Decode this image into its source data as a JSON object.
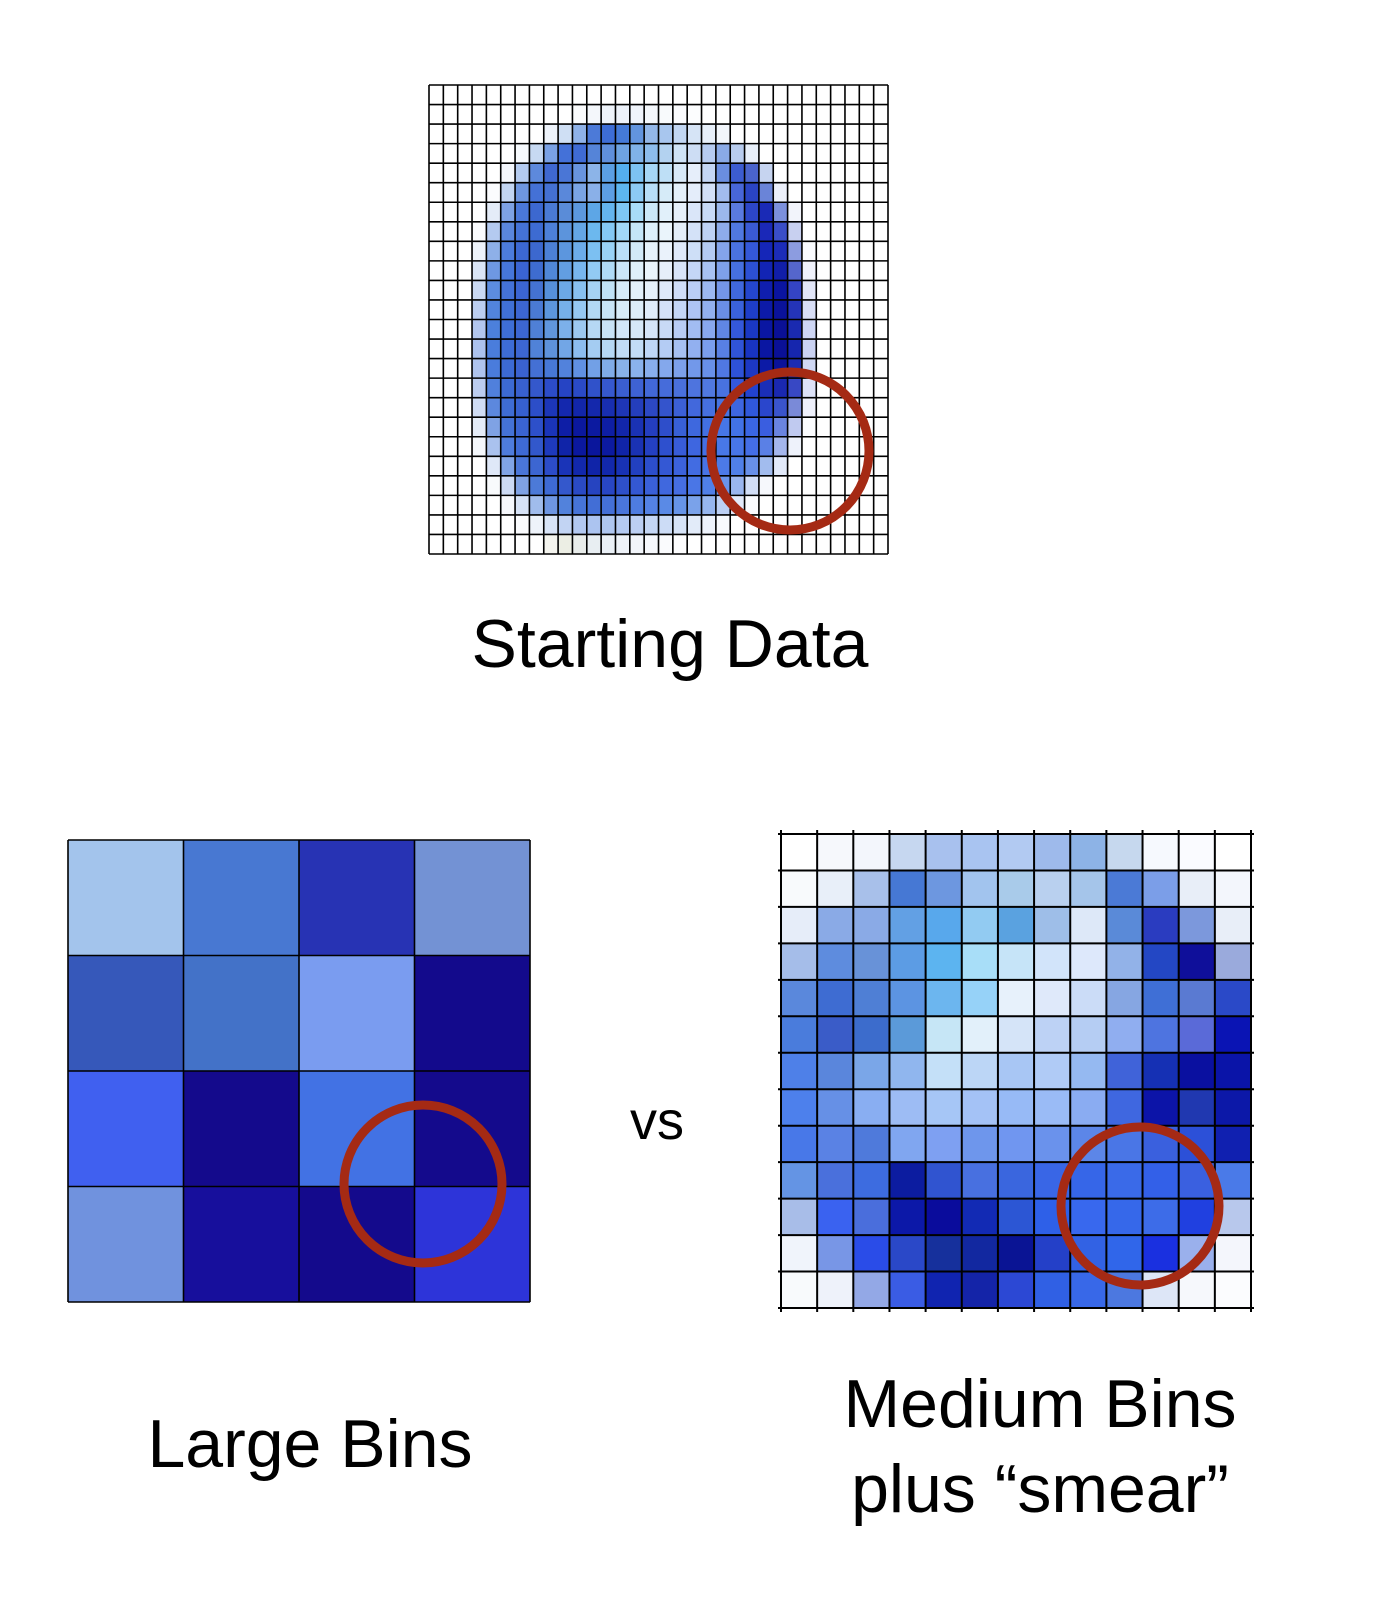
{
  "captions": {
    "starting": "Starting Data",
    "large": "Large Bins",
    "medium_line1": "Medium Bins",
    "medium_line2": "plus “smear”",
    "vs": "vs"
  },
  "colors": {
    "grid_line": "#000000",
    "highlight_circle": "#a52a14",
    "background": "#ffffff"
  },
  "large_bins": [
    [
      "#a3c4ec",
      "#4878d2",
      "#2733b4",
      "#7392d4"
    ],
    [
      "#3658ba",
      "#4372c8",
      "#7a9cf0",
      "#130a8c"
    ],
    [
      "#4060f0",
      "#140a8c",
      "#4272e4",
      "#140a8c"
    ],
    [
      "#7092de",
      "#170f9c",
      "#140a8c",
      "#2d34d9"
    ]
  ],
  "medium_bins": [
    [
      "#ffffff",
      "#f6f8fc",
      "#f3f6fc",
      "#c6d7f0",
      "#a8c1ee",
      "#a9c4f1",
      "#b2caf2",
      "#9ebaeb",
      "#8db3e6",
      "#c6d8ee",
      "#f6f9fe",
      "#fafbff",
      "#ffffff"
    ],
    [
      "#f8fafc",
      "#e8eff9",
      "#a8c0ea",
      "#4678d4",
      "#6d97e0",
      "#a2c4ee",
      "#a9cbea",
      "#b9d0ef",
      "#a5c5ea",
      "#4b7ad6",
      "#7b9ee8",
      "#e8eef8",
      "#f3f6fc"
    ],
    [
      "#e6edf9",
      "#8aaae6",
      "#8aaae6",
      "#62a0e4",
      "#58a8ec",
      "#92cbf2",
      "#5aa2e0",
      "#9ebee8",
      "#dde8f8",
      "#5a8ad8",
      "#2a3cc0",
      "#7c98dc",
      "#e8eef8"
    ],
    [
      "#a5bde9",
      "#5e8cde",
      "#6892d8",
      "#5c9ce4",
      "#5cb4f0",
      "#a8def8",
      "#c6e4f8",
      "#d2e4fa",
      "#dde8fb",
      "#92b2e8",
      "#2347c4",
      "#0f0f9a",
      "#9aaadc"
    ],
    [
      "#5a88dc",
      "#3e6cd2",
      "#4f7fd5",
      "#5c94e2",
      "#6cb6ef",
      "#96d2f8",
      "#e7f1fb",
      "#dfe9fa",
      "#cbdcf7",
      "#86a6e2",
      "#3f6fd6",
      "#5a7ad2",
      "#2a49c8"
    ],
    [
      "#4a7cdc",
      "#3a5cc8",
      "#3c6ccc",
      "#5b9ad9",
      "#c6e6f6",
      "#e2f0fa",
      "#d5e4f8",
      "#bdd2f5",
      "#b5cdf3",
      "#90aef0",
      "#4e74e0",
      "#5a6ad8",
      "#0a14b4"
    ],
    [
      "#4e80e8",
      "#5a86dc",
      "#7aa6e8",
      "#90b6ee",
      "#c4e0f8",
      "#bcd6f6",
      "#a8c6f4",
      "#b0cbf6",
      "#95b9f1",
      "#4063d9",
      "#1530b4",
      "#0a10a0",
      "#0a14a8"
    ],
    [
      "#4d80ec",
      "#6690e6",
      "#89aef2",
      "#9dbcf4",
      "#a6c6f6",
      "#a4c2f6",
      "#97baf6",
      "#9abbf6",
      "#8aacf2",
      "#3f67e0",
      "#0c14a8",
      "#2038b0",
      "#0c18a8"
    ],
    [
      "#4878e8",
      "#5a82e4",
      "#4f7adb",
      "#80a6f0",
      "#7ea0f2",
      "#6e96ec",
      "#7096f0",
      "#6a92ec",
      "#5c86e8",
      "#4a76e6",
      "#3a60de",
      "#2c50d8",
      "#1020b0"
    ],
    [
      "#6494e4",
      "#4a70dc",
      "#3d6ce0",
      "#0c1ca0",
      "#3054d0",
      "#4870e0",
      "#3a66de",
      "#3966e6",
      "#3666e8",
      "#3a6ae8",
      "#3360e8",
      "#3a60e0",
      "#4a7ae8"
    ],
    [
      "#a8bde8",
      "#3a62f0",
      "#4a6edc",
      "#0c18a8",
      "#0a0c9c",
      "#122ab4",
      "#2c56d4",
      "#2e60e8",
      "#3868ee",
      "#3668ea",
      "#3d6ce8",
      "#2040e0",
      "#b8c8ec"
    ],
    [
      "#f0f4fb",
      "#7896e6",
      "#2a4ce8",
      "#2a48c8",
      "#16309c",
      "#1228a0",
      "#0a1494",
      "#2440c8",
      "#3262e4",
      "#3066ea",
      "#1a30e0",
      "#9ab0ec",
      "#f4f6fc"
    ],
    [
      "#f8fafc",
      "#eef2fa",
      "#93a8e6",
      "#3a5ce4",
      "#1024b0",
      "#1424a8",
      "#2c48d4",
      "#3060e4",
      "#3868e8",
      "#4c78e0",
      "#dde6f7",
      "#f6f8fc",
      "#fbfcfe"
    ]
  ],
  "starting_grid": [
    [
      "#ffffff",
      "#ffffff",
      "#ffffff",
      "#ffffff",
      "#ffffff",
      "#ffffff",
      "#ffffff",
      "#ffffff",
      "#ffffff",
      "#ffffff",
      "#ffffff",
      "#ffffff",
      "#ffffff",
      "#ffffff",
      "#ffffff",
      "#ffffff",
      "#ffffff",
      "#ffffff",
      "#ffffff",
      "#ffffff",
      "#ffffff",
      "#ffffff",
      "#ffffff",
      "#ffffff",
      "#ffffff",
      "#ffffff",
      "#ffffff",
      "#ffffff",
      "#ffffff",
      "#ffffff",
      "#ffffff",
      "#ffffff"
    ],
    [
      "#ffffff",
      "#ffffff",
      "#ffffff",
      "#ffffff",
      "#ffffff",
      "#ffffff",
      "#ffffff",
      "#ffffff",
      "#ffffff",
      "#ffffff",
      "#fafbfc",
      "#f4f7fb",
      "#eef3fa",
      "#edf2fa",
      "#f0f4fb",
      "#f4f7fb",
      "#f8fafc",
      "#fafbfd",
      "#fcfdfe",
      "#ffffff",
      "#ffffff",
      "#ffffff",
      "#ffffff",
      "#ffffff",
      "#ffffff",
      "#ffffff",
      "#ffffff",
      "#ffffff",
      "#ffffff",
      "#ffffff",
      "#ffffff",
      "#ffffff"
    ],
    [
      "#ffffff",
      "#ffffff",
      "#ffffff",
      "#ffffff",
      "#ffffff",
      "#ffffff",
      "#ffffff",
      "#ffffff",
      "#eef3fa",
      "#cfdff4",
      "#8fb2e8",
      "#4c7ad8",
      "#3d6dd6",
      "#447ad8",
      "#6294de",
      "#93b7e8",
      "#a8c6ee",
      "#c1d6f2",
      "#d6e4f6",
      "#e7eff9",
      "#f2f6fb",
      "#ffffff",
      "#ffffff",
      "#ffffff",
      "#ffffff",
      "#ffffff",
      "#ffffff",
      "#ffffff",
      "#ffffff",
      "#ffffff",
      "#ffffff",
      "#ffffff"
    ],
    [
      "#ffffff",
      "#ffffff",
      "#ffffff",
      "#ffffff",
      "#ffffff",
      "#ffffff",
      "#f6f9fc",
      "#c7d9f2",
      "#7aa1e4",
      "#4471d8",
      "#3f6bd4",
      "#5584d8",
      "#5f8fdc",
      "#6ea3e2",
      "#80b2e8",
      "#8dbcec",
      "#b3d2f0",
      "#cfe3f6",
      "#cdddf4",
      "#b6cbf0",
      "#8aaae6",
      "#b8ccee",
      "#e8eff9",
      "#ffffff",
      "#ffffff",
      "#ffffff",
      "#ffffff",
      "#ffffff",
      "#ffffff",
      "#ffffff",
      "#ffffff",
      "#ffffff"
    ],
    [
      "#ffffff",
      "#ffffff",
      "#ffffff",
      "#ffffff",
      "#ffffff",
      "#f4f7fc",
      "#b4cbf0",
      "#5d89dc",
      "#3f68d0",
      "#4a76d6",
      "#6894de",
      "#8cb4e8",
      "#5b9fe4",
      "#54aeee",
      "#7dc2f2",
      "#a6d6f6",
      "#bedff6",
      "#d8e9f8",
      "#e6eefa",
      "#c4d6f4",
      "#6a8ee0",
      "#3c5cd0",
      "#4a64cc",
      "#c6d4f0",
      "#ffffff",
      "#ffffff",
      "#ffffff",
      "#ffffff",
      "#ffffff",
      "#ffffff",
      "#ffffff",
      "#ffffff"
    ],
    [
      "#ffffff",
      "#ffffff",
      "#ffffff",
      "#ffffff",
      "#fbfcfe",
      "#c2d5f2",
      "#6e96e0",
      "#4471d6",
      "#4470d2",
      "#5a88da",
      "#7aa4e4",
      "#8ab0e8",
      "#5c9ee4",
      "#5db6f0",
      "#8ccaf4",
      "#b7def8",
      "#d6ebf8",
      "#e4f0fa",
      "#e4edfa",
      "#d3e0f7",
      "#a2bcee",
      "#4866d8",
      "#2a44c4",
      "#6a84d8",
      "#ecf0fa",
      "#ffffff",
      "#ffffff",
      "#ffffff",
      "#ffffff",
      "#ffffff",
      "#ffffff",
      "#ffffff"
    ],
    [
      "#ffffff",
      "#ffffff",
      "#ffffff",
      "#ffffff",
      "#e4ecf8",
      "#7ea2e4",
      "#4a78da",
      "#3c68d0",
      "#4a7ad4",
      "#5a8cd8",
      "#5c98de",
      "#5da6e6",
      "#64b4ee",
      "#7ec6f4",
      "#a8dcf8",
      "#cbe8f8",
      "#e1f0fa",
      "#e6f0fa",
      "#dae6f9",
      "#c8daf6",
      "#9cb8ec",
      "#5a7ae0",
      "#2c46c8",
      "#1a2ab6",
      "#7c90dc",
      "#f2f4fb",
      "#ffffff",
      "#ffffff",
      "#ffffff",
      "#ffffff",
      "#ffffff",
      "#ffffff"
    ],
    [
      "#ffffff",
      "#ffffff",
      "#ffffff",
      "#fafbfd",
      "#b4caf0",
      "#5a86dc",
      "#4472d6",
      "#3d6bd2",
      "#4d80d8",
      "#5c94dc",
      "#64a6e4",
      "#6cb8ee",
      "#84c8f4",
      "#a2d8f8",
      "#c4e6f8",
      "#ddf0fa",
      "#eaf4fb",
      "#e4eef9",
      "#d4e2f8",
      "#bed2f4",
      "#8eacea",
      "#5078e0",
      "#3a5ad4",
      "#1a28b8",
      "#3a4ec8",
      "#c8d0f0",
      "#ffffff",
      "#ffffff",
      "#ffffff",
      "#ffffff",
      "#ffffff",
      "#ffffff"
    ],
    [
      "#ffffff",
      "#ffffff",
      "#ffffff",
      "#eef3fa",
      "#8eb0e8",
      "#4c7cdc",
      "#3c68d2",
      "#3c68cf",
      "#4c80d6",
      "#5c96de",
      "#6cacea",
      "#7cc0f2",
      "#9ad2f6",
      "#badff8",
      "#d2eaf8",
      "#e6f2fa",
      "#eaf2fb",
      "#dfe9f9",
      "#cedff7",
      "#b4cbf3",
      "#84a4ea",
      "#4a72e0",
      "#3458d8",
      "#1526b8",
      "#1c2cb8",
      "#8c9ce0",
      "#fafbfe",
      "#ffffff",
      "#ffffff",
      "#ffffff",
      "#ffffff",
      "#ffffff"
    ],
    [
      "#ffffff",
      "#ffffff",
      "#ffffff",
      "#dae5f6",
      "#6e98e2",
      "#4676da",
      "#3a64d2",
      "#3e6cd0",
      "#5088d8",
      "#629ee2",
      "#78b6ee",
      "#92caf4",
      "#b0daf6",
      "#cbe6f8",
      "#dff0fa",
      "#eaf4fb",
      "#e6effa",
      "#d8e4f8",
      "#c4d6f6",
      "#a8c2f2",
      "#7ea0ea",
      "#4670e0",
      "#2c50d4",
      "#1224b4",
      "#111ea8",
      "#5566cc",
      "#f0f2fb",
      "#ffffff",
      "#ffffff",
      "#ffffff",
      "#ffffff",
      "#ffffff"
    ],
    [
      "#ffffff",
      "#ffffff",
      "#ffffff",
      "#cad9f3",
      "#5c8cdf",
      "#4472d8",
      "#3b65d2",
      "#4472d2",
      "#5690da",
      "#6ca8e6",
      "#88c0f0",
      "#a6d2f4",
      "#c0e2f6",
      "#d5ebf8",
      "#e3f1fa",
      "#e6f1fa",
      "#dee9f9",
      "#cfddf7",
      "#bacef5",
      "#9cb8f0",
      "#7496e8",
      "#4068de",
      "#2446ce",
      "#0f1eae",
      "#0a14a0",
      "#3444c4",
      "#e2e6f8",
      "#ffffff",
      "#ffffff",
      "#ffffff",
      "#ffffff",
      "#ffffff"
    ],
    [
      "#ffffff",
      "#ffffff",
      "#ffffff",
      "#bccef0",
      "#5284dc",
      "#4070d6",
      "#3c66d2",
      "#4a7ad4",
      "#5c96dc",
      "#76b0ea",
      "#96c8f2",
      "#b2d8f4",
      "#c8e4f6",
      "#d6ebf8",
      "#ddeef9",
      "#dfecf9",
      "#d5e2f8",
      "#c4d6f6",
      "#aec4f4",
      "#92b0ee",
      "#6a8ee6",
      "#3a62dc",
      "#1e3ec8",
      "#0c1aa8",
      "#0a129a",
      "#2434b8",
      "#d8def6",
      "#ffffff",
      "#ffffff",
      "#ffffff",
      "#ffffff",
      "#ffffff"
    ],
    [
      "#ffffff",
      "#ffffff",
      "#ffffff",
      "#b2c6ee",
      "#4c80dc",
      "#3e6ed6",
      "#3c66d2",
      "#4f80d6",
      "#6096dc",
      "#7cb0ea",
      "#9cc8f0",
      "#b6d8f4",
      "#c8e2f6",
      "#d2e6f8",
      "#d6e8f8",
      "#d4e4f8",
      "#c8daf6",
      "#b8ccf4",
      "#a2bcf2",
      "#88a8ee",
      "#6086e4",
      "#3458da",
      "#1a38c4",
      "#0a16a2",
      "#0a1096",
      "#1a2ab0",
      "#ced6f4",
      "#ffffff",
      "#ffffff",
      "#ffffff",
      "#ffffff",
      "#ffffff"
    ],
    [
      "#ffffff",
      "#ffffff",
      "#ffffff",
      "#acc2ee",
      "#4a7ddc",
      "#3d6cd6",
      "#3c66d2",
      "#5082d8",
      "#5e92da",
      "#72a6e6",
      "#8cbcee",
      "#a4ccf2",
      "#b6d8f4",
      "#c0dcf6",
      "#c2dcf6",
      "#bed6f6",
      "#b4ccf4",
      "#a6c0f2",
      "#92b0f0",
      "#7a9eec",
      "#5880e4",
      "#3054d8",
      "#1834c2",
      "#0a16a2",
      "#0a1096",
      "#1626ae",
      "#cad2f2",
      "#ffffff",
      "#ffffff",
      "#ffffff",
      "#ffffff",
      "#ffffff"
    ],
    [
      "#ffffff",
      "#ffffff",
      "#ffffff",
      "#afc4ee",
      "#4a7cdc",
      "#3c6ad4",
      "#3a62d0",
      "#4470d4",
      "#4778d6",
      "#5282dc",
      "#6090e2",
      "#72a0e6",
      "#80ace8",
      "#88b2ea",
      "#8ab2ec",
      "#88aeec",
      "#84a8ec",
      "#7ca0ea",
      "#7298ea",
      "#6890e8",
      "#5078e2",
      "#2e52d8",
      "#1c38c4",
      "#0c1aa6",
      "#0a129a",
      "#1c2cb2",
      "#d0d8f4",
      "#ffffff",
      "#ffffff",
      "#ffffff",
      "#ffffff",
      "#ffffff"
    ],
    [
      "#ffffff",
      "#ffffff",
      "#ffffff",
      "#bccdf0",
      "#5080dc",
      "#3c6ad4",
      "#3860cf",
      "#3458cc",
      "#2c4cc8",
      "#2644c4",
      "#2a4ac6",
      "#3052ca",
      "#3658ce",
      "#3a5ed0",
      "#3e62d4",
      "#4268d8",
      "#466cda",
      "#4a70dc",
      "#4e74de",
      "#5078e0",
      "#4872e0",
      "#3458dc",
      "#2242d0",
      "#1a2eb8",
      "#1a28b0",
      "#3848c4",
      "#dde2f8",
      "#ffffff",
      "#ffffff",
      "#ffffff",
      "#ffffff",
      "#ffffff"
    ],
    [
      "#ffffff",
      "#ffffff",
      "#ffffff",
      "#cfdcf4",
      "#5c88de",
      "#3e6cd4",
      "#3660d0",
      "#2c4ec8",
      "#1c36b8",
      "#1428ae",
      "#1226aa",
      "#1428ac",
      "#182eb0",
      "#1e36b6",
      "#243ebc",
      "#2c48c4",
      "#3454cc",
      "#3c60d6",
      "#4268dc",
      "#4670e0",
      "#4674e2",
      "#3e66e0",
      "#3058da",
      "#2a46cc",
      "#3a54cc",
      "#7a8ad8",
      "#eef0fb",
      "#ffffff",
      "#ffffff",
      "#ffffff",
      "#ffffff",
      "#ffffff"
    ],
    [
      "#ffffff",
      "#ffffff",
      "#ffffff",
      "#e4ecf8",
      "#7fa2e4",
      "#4472d6",
      "#3a64d2",
      "#2d50ca",
      "#1a34b8",
      "#0e1ea6",
      "#0b189e",
      "#0c1aa0",
      "#0e1ea4",
      "#1226aa",
      "#1a32b4",
      "#243ec0",
      "#2e4eca",
      "#3860d6",
      "#3e68de",
      "#4270e2",
      "#4676e6",
      "#4272e6",
      "#3a66e4",
      "#3a5ee0",
      "#6a84e0",
      "#c0caf0",
      "#fbfcfe",
      "#ffffff",
      "#ffffff",
      "#ffffff",
      "#ffffff",
      "#ffffff"
    ],
    [
      "#ffffff",
      "#ffffff",
      "#ffffff",
      "#f4f7fb",
      "#aac2ee",
      "#4e7cdc",
      "#3e6ad4",
      "#3258cc",
      "#1e3abc",
      "#1024a8",
      "#0b189e",
      "#0a169c",
      "#0c1aa0",
      "#1024a8",
      "#1a32b4",
      "#2440c2",
      "#2e50ce",
      "#385cd8",
      "#3e66e0",
      "#4470e4",
      "#4878e8",
      "#4876e8",
      "#446ee6",
      "#5a80e6",
      "#a4b6ec",
      "#eef2fb",
      "#ffffff",
      "#ffffff",
      "#ffffff",
      "#ffffff",
      "#ffffff",
      "#ffffff"
    ],
    [
      "#ffffff",
      "#ffffff",
      "#ffffff",
      "#ffffff",
      "#dfe8f8",
      "#80a4e6",
      "#4a76d8",
      "#3c66d2",
      "#2c4cc8",
      "#1a34b8",
      "#1228ac",
      "#1024a8",
      "#1228ac",
      "#1832b4",
      "#2240c0",
      "#2c4ecc",
      "#3458d4",
      "#3c62dc",
      "#426ce2",
      "#4874e6",
      "#4c7ae8",
      "#5080e8",
      "#6890e8",
      "#a2bcee",
      "#e2eafa",
      "#ffffff",
      "#ffffff",
      "#ffffff",
      "#ffffff",
      "#ffffff",
      "#ffffff",
      "#ffffff"
    ],
    [
      "#ffffff",
      "#ffffff",
      "#ffffff",
      "#ffffff",
      "#f8fafc",
      "#ccdaf4",
      "#7fa2e4",
      "#4c7ad8",
      "#3e6ad4",
      "#3458cc",
      "#2a4ac4",
      "#2644c0",
      "#2846c4",
      "#2e50ca",
      "#3458d2",
      "#3a60d8",
      "#4068de",
      "#466ee2",
      "#4a76e6",
      "#5080e8",
      "#6a94ea",
      "#9ab6ee",
      "#d2def6",
      "#f6f8fc",
      "#ffffff",
      "#ffffff",
      "#ffffff",
      "#ffffff",
      "#ffffff",
      "#ffffff",
      "#ffffff",
      "#ffffff"
    ],
    [
      "#ffffff",
      "#ffffff",
      "#ffffff",
      "#ffffff",
      "#ffffff",
      "#f6f8fc",
      "#d6e2f6",
      "#a0bcec",
      "#6e96e2",
      "#5282dc",
      "#4674d8",
      "#426ed6",
      "#4470d8",
      "#4a76dc",
      "#4e7ce0",
      "#5482e4",
      "#5a8ae6",
      "#6694e8",
      "#7aa2ea",
      "#96b6ee",
      "#bcd0f4",
      "#e2eafa",
      "#fafbfe",
      "#ffffff",
      "#ffffff",
      "#ffffff",
      "#ffffff",
      "#ffffff",
      "#ffffff",
      "#ffffff",
      "#ffffff",
      "#ffffff"
    ],
    [
      "#ffffff",
      "#ffffff",
      "#ffffff",
      "#ffffff",
      "#ffffff",
      "#ffffff",
      "#fafbfd",
      "#eef3fa",
      "#d8e4f7",
      "#c2d4f3",
      "#b2c8f0",
      "#acc4f0",
      "#aec6f0",
      "#b4caf2",
      "#bccff3",
      "#c4d6f4",
      "#ccdcf6",
      "#d6e3f7",
      "#e2ebf9",
      "#eef3fb",
      "#f8fafd",
      "#ffffff",
      "#ffffff",
      "#ffffff",
      "#ffffff",
      "#ffffff",
      "#ffffff",
      "#ffffff",
      "#ffffff",
      "#ffffff",
      "#ffffff",
      "#ffffff"
    ],
    [
      "#ffffff",
      "#ffffff",
      "#ffffff",
      "#ffffff",
      "#ffffff",
      "#ffffff",
      "#ffffff",
      "#ffffff",
      "#f4f4ee",
      "#eceee4",
      "#e8ecea",
      "#e8eef2",
      "#eaf0f6",
      "#eef2f8",
      "#f2f5fa",
      "#f6f8fc",
      "#fafbfd",
      "#fdfdfe",
      "#ffffff",
      "#ffffff",
      "#ffffff",
      "#ffffff",
      "#ffffff",
      "#ffffff",
      "#ffffff",
      "#ffffff",
      "#ffffff",
      "#ffffff",
      "#ffffff",
      "#ffffff",
      "#ffffff",
      "#ffffff"
    ]
  ]
}
